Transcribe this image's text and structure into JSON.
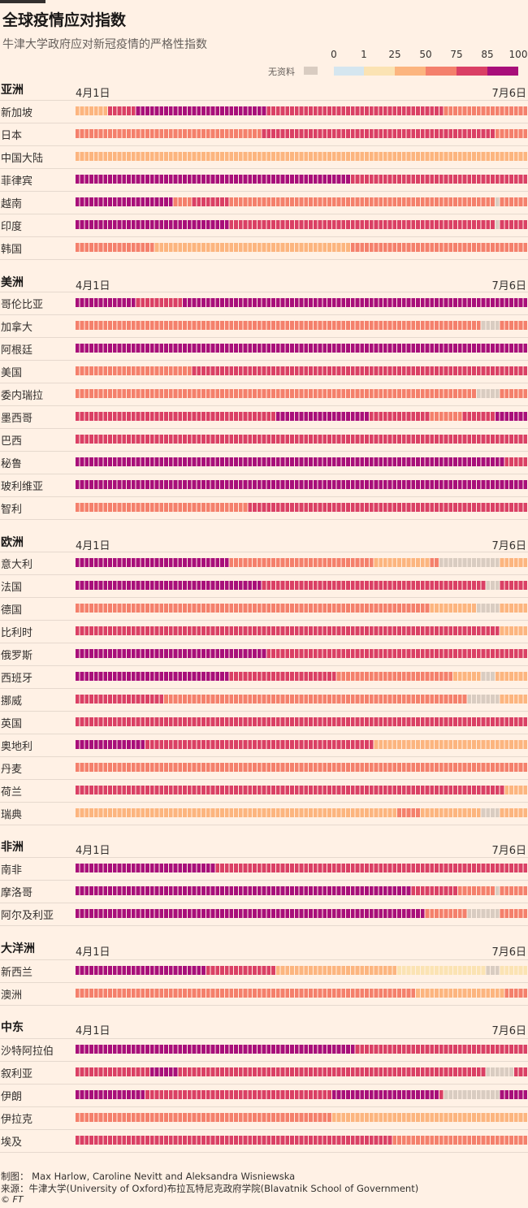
{
  "title": "全球疫情应对指数",
  "subtitle": "牛津大学政府应对新冠疫情的严格性指数",
  "legend": {
    "no_data_label": "无资料",
    "ticks": [
      "0",
      "1",
      "25",
      "50",
      "75",
      "85",
      "100"
    ],
    "colors": {
      "nodata": "#d9ccc1",
      "b0": "#d5e6ef",
      "b1": "#fbe3b3",
      "b25": "#fcb57f",
      "b50": "#f4806c",
      "b75": "#da4065",
      "b85": "#a80f7a"
    }
  },
  "chart_data": {
    "type": "heatmap",
    "x_start_label": "4月1日",
    "x_end_label": "7月6日",
    "n_days": 97,
    "value_bins": [
      "0",
      "1-25",
      "25-50",
      "50-75",
      "75-85",
      "85-100"
    ],
    "regions": [
      {
        "name": "亚洲",
        "countries": [
          {
            "name": "新加坡",
            "segments": [
              [
                7,
                "b25"
              ],
              [
                6,
                "b75"
              ],
              [
                28,
                "b85"
              ],
              [
                38,
                "b75"
              ],
              [
                18,
                "b50"
              ]
            ]
          },
          {
            "name": "日本",
            "segments": [
              [
                40,
                "b50"
              ],
              [
                50,
                "b75"
              ],
              [
                7,
                "b50"
              ]
            ]
          },
          {
            "name": "中国大陆",
            "segments": [
              [
                97,
                "b25"
              ]
            ]
          },
          {
            "name": "菲律宾",
            "segments": [
              [
                59,
                "b85"
              ],
              [
                38,
                "b75"
              ]
            ]
          },
          {
            "name": "越南",
            "segments": [
              [
                21,
                "b85"
              ],
              [
                4,
                "b50"
              ],
              [
                8,
                "b75"
              ],
              [
                57,
                "b50"
              ],
              [
                1,
                "nodata"
              ],
              [
                6,
                "b50"
              ]
            ]
          },
          {
            "name": "印度",
            "segments": [
              [
                33,
                "b85"
              ],
              [
                57,
                "b75"
              ],
              [
                1,
                "nodata"
              ],
              [
                6,
                "b75"
              ]
            ]
          },
          {
            "name": "韩国",
            "segments": [
              [
                17,
                "b50"
              ],
              [
                2,
                "b25"
              ],
              [
                40,
                "b25"
              ],
              [
                38,
                "b50"
              ]
            ]
          }
        ]
      },
      {
        "name": "美洲",
        "countries": [
          {
            "name": "哥伦比亚",
            "segments": [
              [
                13,
                "b85"
              ],
              [
                10,
                "b75"
              ],
              [
                74,
                "b85"
              ]
            ]
          },
          {
            "name": "加拿大",
            "segments": [
              [
                87,
                "b50"
              ],
              [
                4,
                "nodata"
              ],
              [
                6,
                "b50"
              ]
            ]
          },
          {
            "name": "阿根廷",
            "segments": [
              [
                97,
                "b85"
              ]
            ]
          },
          {
            "name": "美国",
            "segments": [
              [
                25,
                "b50"
              ],
              [
                72,
                "b75"
              ]
            ]
          },
          {
            "name": "委内瑞拉",
            "segments": [
              [
                86,
                "b50"
              ],
              [
                5,
                "nodata"
              ],
              [
                6,
                "b50"
              ]
            ]
          },
          {
            "name": "墨西哥",
            "segments": [
              [
                43,
                "b75"
              ],
              [
                20,
                "b85"
              ],
              [
                13,
                "b75"
              ],
              [
                7,
                "b50"
              ],
              [
                7,
                "b75"
              ],
              [
                7,
                "b85"
              ]
            ]
          },
          {
            "name": "巴西",
            "segments": [
              [
                97,
                "b75"
              ]
            ]
          },
          {
            "name": "秘鲁",
            "segments": [
              [
                92,
                "b85"
              ],
              [
                5,
                "b75"
              ]
            ]
          },
          {
            "name": "玻利维亚",
            "segments": [
              [
                97,
                "b85"
              ]
            ]
          },
          {
            "name": "智利",
            "segments": [
              [
                37,
                "b50"
              ],
              [
                60,
                "b75"
              ]
            ]
          }
        ]
      },
      {
        "name": "欧洲",
        "countries": [
          {
            "name": "意大利",
            "segments": [
              [
                33,
                "b85"
              ],
              [
                31,
                "b50"
              ],
              [
                12,
                "b25"
              ],
              [
                2,
                "b50"
              ],
              [
                13,
                "nodata"
              ],
              [
                6,
                "b25"
              ]
            ]
          },
          {
            "name": "法国",
            "segments": [
              [
                40,
                "b85"
              ],
              [
                48,
                "b75"
              ],
              [
                3,
                "nodata"
              ],
              [
                6,
                "b75"
              ]
            ]
          },
          {
            "name": "德国",
            "segments": [
              [
                76,
                "b50"
              ],
              [
                10,
                "b25"
              ],
              [
                5,
                "nodata"
              ],
              [
                6,
                "b25"
              ]
            ]
          },
          {
            "name": "比利时",
            "segments": [
              [
                91,
                "b75"
              ],
              [
                6,
                "b25"
              ]
            ]
          },
          {
            "name": "俄罗斯",
            "segments": [
              [
                41,
                "b85"
              ],
              [
                56,
                "b75"
              ]
            ]
          },
          {
            "name": "西班牙",
            "segments": [
              [
                33,
                "b85"
              ],
              [
                23,
                "b75"
              ],
              [
                25,
                "b50"
              ],
              [
                6,
                "b25"
              ],
              [
                3,
                "nodata"
              ],
              [
                7,
                "b25"
              ]
            ]
          },
          {
            "name": "挪威",
            "segments": [
              [
                19,
                "b75"
              ],
              [
                65,
                "b50"
              ],
              [
                7,
                "nodata"
              ],
              [
                6,
                "b25"
              ]
            ]
          },
          {
            "name": "英国",
            "segments": [
              [
                42,
                "b75"
              ],
              [
                55,
                "b75"
              ]
            ]
          },
          {
            "name": "奥地利",
            "segments": [
              [
                15,
                "b85"
              ],
              [
                49,
                "b75"
              ],
              [
                33,
                "b25"
              ]
            ]
          },
          {
            "name": "丹麦",
            "segments": [
              [
                97,
                "b50"
              ]
            ]
          },
          {
            "name": "荷兰",
            "segments": [
              [
                92,
                "b75"
              ],
              [
                5,
                "b25"
              ]
            ]
          },
          {
            "name": "瑞典",
            "segments": [
              [
                69,
                "b25"
              ],
              [
                5,
                "b50"
              ],
              [
                13,
                "b25"
              ],
              [
                4,
                "nodata"
              ],
              [
                6,
                "b25"
              ]
            ]
          }
        ]
      },
      {
        "name": "非洲",
        "countries": [
          {
            "name": "南非",
            "segments": [
              [
                30,
                "b85"
              ],
              [
                67,
                "b75"
              ]
            ]
          },
          {
            "name": "摩洛哥",
            "segments": [
              [
                72,
                "b85"
              ],
              [
                10,
                "b75"
              ],
              [
                8,
                "b50"
              ],
              [
                1,
                "nodata"
              ],
              [
                6,
                "b50"
              ]
            ]
          },
          {
            "name": "阿尔及利亚",
            "segments": [
              [
                75,
                "b85"
              ],
              [
                9,
                "b50"
              ],
              [
                7,
                "nodata"
              ],
              [
                6,
                "b50"
              ]
            ]
          }
        ]
      },
      {
        "name": "大洋洲",
        "countries": [
          {
            "name": "新西兰",
            "segments": [
              [
                28,
                "b85"
              ],
              [
                15,
                "b75"
              ],
              [
                26,
                "b25"
              ],
              [
                19,
                "b1"
              ],
              [
                3,
                "nodata"
              ],
              [
                6,
                "b1"
              ]
            ]
          },
          {
            "name": "澳洲",
            "segments": [
              [
                73,
                "b50"
              ],
              [
                19,
                "b25"
              ],
              [
                5,
                "b50"
              ]
            ]
          }
        ]
      },
      {
        "name": "中东",
        "countries": [
          {
            "name": "沙特阿拉伯",
            "segments": [
              [
                60,
                "b85"
              ],
              [
                37,
                "b75"
              ]
            ]
          },
          {
            "name": "叙利亚",
            "segments": [
              [
                16,
                "b75"
              ],
              [
                6,
                "b85"
              ],
              [
                66,
                "b75"
              ],
              [
                6,
                "nodata"
              ],
              [
                3,
                "b75"
              ]
            ]
          },
          {
            "name": "伊朗",
            "segments": [
              [
                15,
                "b85"
              ],
              [
                40,
                "b75"
              ],
              [
                23,
                "b85"
              ],
              [
                1,
                "b75"
              ],
              [
                12,
                "nodata"
              ],
              [
                6,
                "b85"
              ]
            ]
          },
          {
            "name": "伊拉克",
            "segments": [
              [
                55,
                "b50"
              ],
              [
                42,
                "b25"
              ]
            ]
          },
          {
            "name": "埃及",
            "segments": [
              [
                68,
                "b75"
              ],
              [
                29,
                "b50"
              ]
            ]
          }
        ]
      }
    ]
  },
  "footer": {
    "credit": "制图：  Max Harlow, Caroline Nevitt and Aleksandra Wisniewska",
    "source": "来源：牛津大学(University of Oxford)布拉瓦特尼克政府学院(Blavatnik School of Government)",
    "copyright": "© FT"
  }
}
